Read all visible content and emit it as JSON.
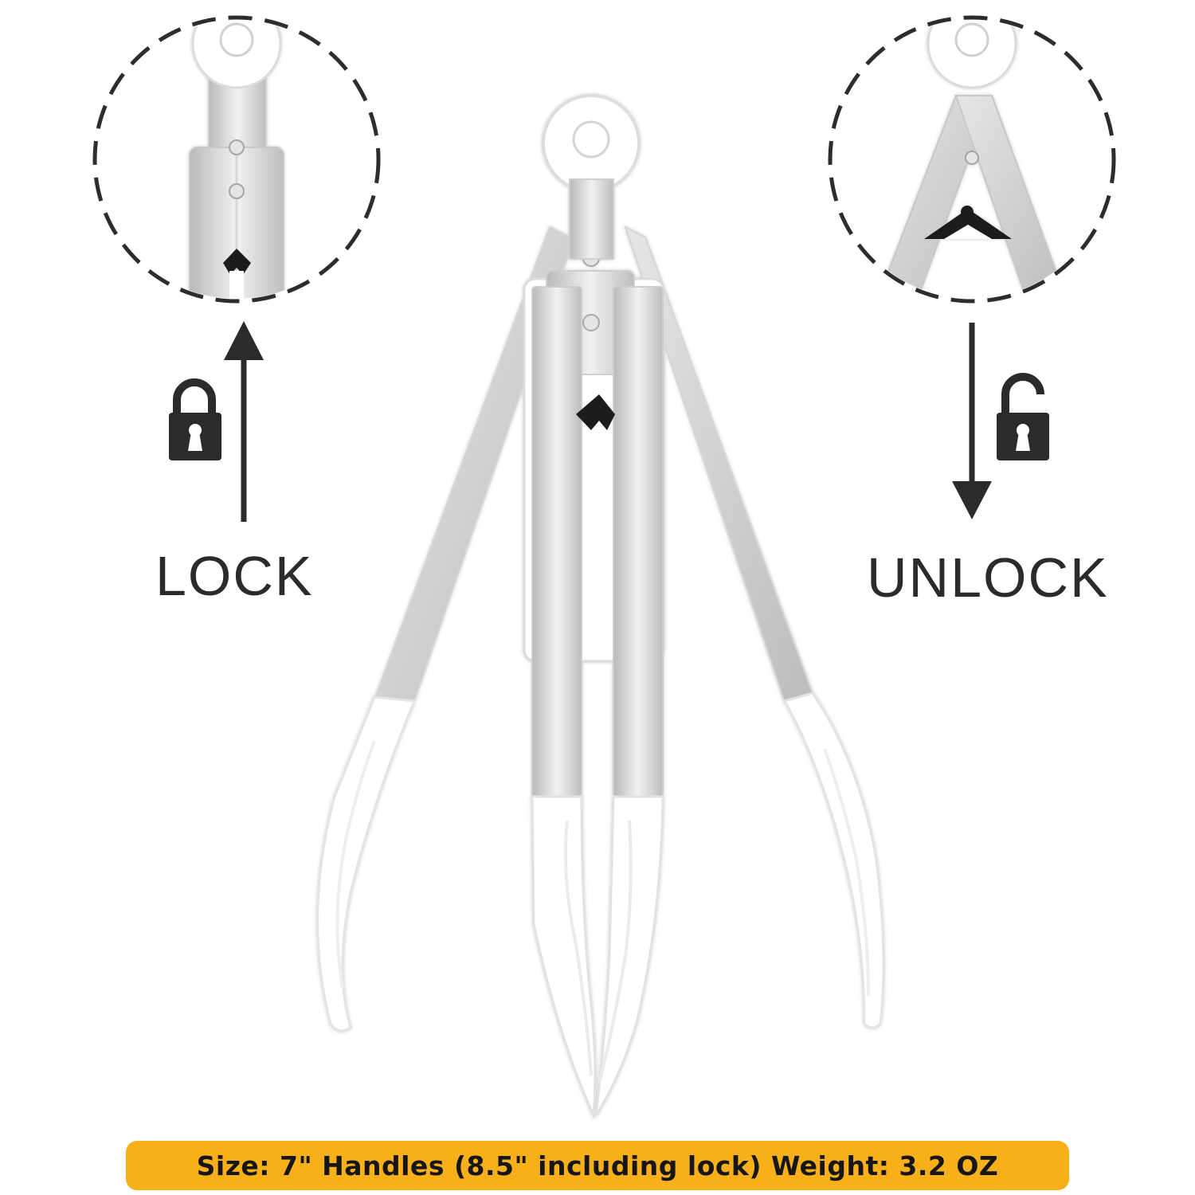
{
  "labels": {
    "lock": "LOCK",
    "unlock": "UNLOCK"
  },
  "banner": {
    "text": "Size: 7\" Handles (8.5\" including lock) Weight: 3.2 OZ"
  },
  "icons": {
    "lock": "padlock-closed-icon",
    "unlock": "padlock-open-icon",
    "arrow_up": "arrow-up-icon",
    "arrow_down": "arrow-down-icon"
  },
  "colors": {
    "banner": "#f8b01a",
    "text": "#2b2b2b",
    "steel": "#cfcfcf",
    "silicone": "#ffffff"
  }
}
